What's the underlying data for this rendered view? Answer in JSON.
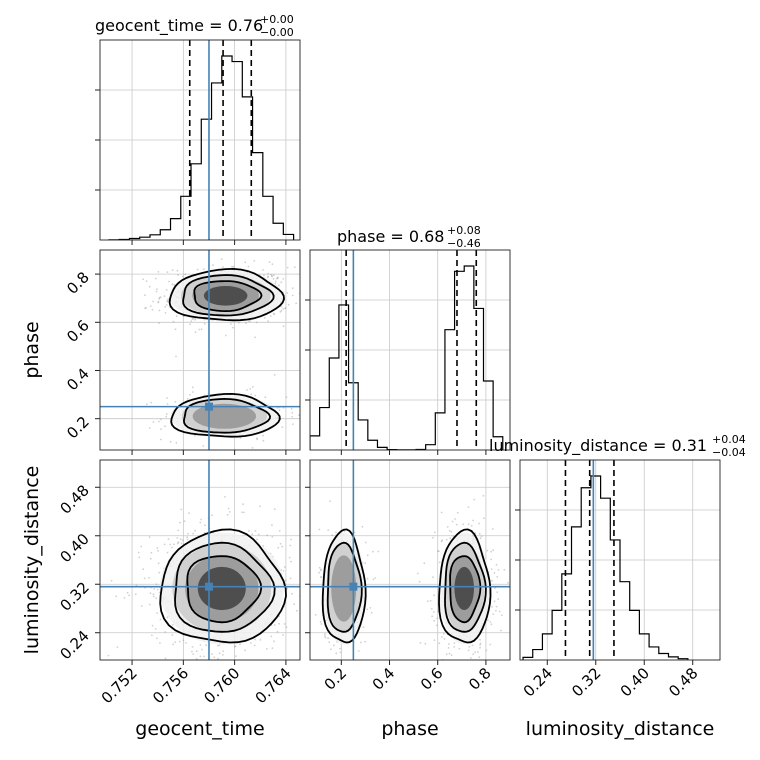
{
  "chart_data": {
    "type": "corner",
    "parameters": [
      "geocent_time",
      "phase",
      "luminosity_distance"
    ],
    "truths": {
      "geocent_time": 0.758,
      "phase": 0.25,
      "luminosity_distance": 0.316
    },
    "ranges": {
      "geocent_time": [
        0.7495,
        0.7651
      ],
      "phase": [
        0.07,
        0.9
      ],
      "luminosity_distance": [
        0.195,
        0.525
      ]
    },
    "ticks": {
      "geocent_time": {
        "values": [
          0.752,
          0.756,
          0.76,
          0.764
        ],
        "labels": [
          "0.752",
          "0.756",
          "0.760",
          "0.764"
        ]
      },
      "phase": {
        "values": [
          0.2,
          0.4,
          0.6,
          0.8
        ],
        "labels": [
          "0.2",
          "0.4",
          "0.6",
          "0.8"
        ]
      },
      "luminosity_distance": {
        "values": [
          0.24,
          0.32,
          0.4,
          0.48
        ],
        "labels": [
          "0.24",
          "0.32",
          "0.40",
          "0.48"
        ]
      }
    },
    "titles": {
      "geocent_time": {
        "text": "geocent_time = 0.76",
        "plus": "+0.00",
        "minus": "−0.00"
      },
      "phase": {
        "text": "phase = 0.68",
        "plus": "+0.08",
        "minus": "−0.46"
      },
      "luminosity_distance": {
        "text": "luminosity_distance = 0.31",
        "plus": "+0.04",
        "minus": "−0.04"
      }
    },
    "quantiles": {
      "geocent_time": [
        0.7565,
        0.7591,
        0.7613
      ],
      "phase": [
        0.22,
        0.68,
        0.76
      ],
      "luminosity_distance": [
        0.27,
        0.31,
        0.35
      ]
    },
    "histograms": {
      "geocent_time": {
        "edges": [
          0.7502,
          0.751,
          0.7518,
          0.7526,
          0.7534,
          0.7542,
          0.755,
          0.7558,
          0.7566,
          0.7574,
          0.7582,
          0.759,
          0.7598,
          0.7606,
          0.7614,
          0.7622,
          0.763,
          0.7638,
          0.7646
        ],
        "counts": [
          1,
          3,
          8,
          15,
          28,
          55,
          115,
          235,
          410,
          650,
          845,
          990,
          960,
          770,
          470,
          235,
          90,
          30
        ]
      },
      "phase": {
        "edges": [
          0.07,
          0.11,
          0.15,
          0.19,
          0.23,
          0.27,
          0.31,
          0.35,
          0.39,
          0.43,
          0.47,
          0.51,
          0.55,
          0.59,
          0.63,
          0.67,
          0.71,
          0.75,
          0.79,
          0.83,
          0.87
        ],
        "counts": [
          80,
          240,
          520,
          820,
          380,
          170,
          55,
          15,
          2,
          1,
          1,
          3,
          30,
          210,
          680,
          1010,
          1040,
          800,
          390,
          75
        ]
      },
      "luminosity_distance": {
        "edges": [
          0.2,
          0.216,
          0.232,
          0.248,
          0.264,
          0.28,
          0.296,
          0.312,
          0.328,
          0.344,
          0.36,
          0.376,
          0.392,
          0.408,
          0.424,
          0.44,
          0.456,
          0.472
        ],
        "counts": [
          10,
          40,
          100,
          190,
          330,
          510,
          660,
          705,
          620,
          460,
          300,
          190,
          100,
          50,
          25,
          12,
          5
        ]
      }
    },
    "joint": [
      {
        "x": "geocent_time",
        "y": "phase",
        "modes": [
          {
            "cx": 0.7593,
            "cy": 0.71,
            "sx": 0.002,
            "sy": 0.048,
            "weight": 0.72
          },
          {
            "cx": 0.7592,
            "cy": 0.21,
            "sx": 0.0019,
            "sy": 0.04,
            "weight": 0.28
          }
        ]
      },
      {
        "x": "geocent_time",
        "y": "luminosity_distance",
        "modes": [
          {
            "cx": 0.759,
            "cy": 0.313,
            "sx": 0.0022,
            "sy": 0.042,
            "weight": 1.0
          }
        ]
      },
      {
        "x": "phase",
        "y": "luminosity_distance",
        "modes": [
          {
            "cx": 0.21,
            "cy": 0.313,
            "sx": 0.04,
            "sy": 0.042,
            "weight": 0.3
          },
          {
            "cx": 0.71,
            "cy": 0.313,
            "sx": 0.048,
            "sy": 0.042,
            "weight": 0.7
          }
        ]
      }
    ],
    "contour_levels": [
      0.3,
      0.6,
      0.85,
      0.97
    ],
    "grid": true,
    "colors": {
      "truth": "#4682b4",
      "contours": "#000000",
      "histogram": "#000000",
      "points": "#9a9a9a",
      "grid": "#c8c8c8"
    }
  }
}
